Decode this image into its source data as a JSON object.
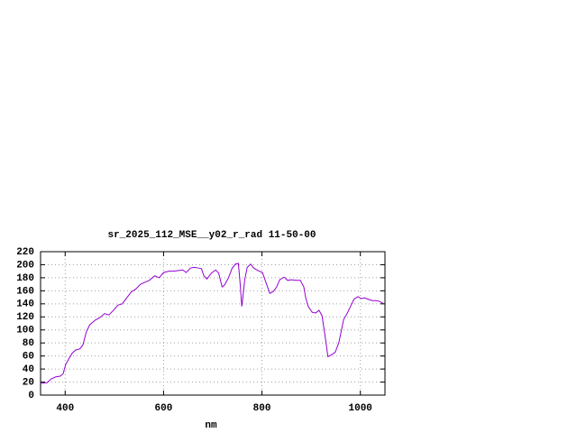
{
  "chart_data": {
    "type": "line",
    "title": "sr_2025_112_MSE__y02_r_rad 11-50-00",
    "x_label": "nm",
    "x": [
      350,
      363,
      372,
      381,
      390,
      396,
      401,
      407,
      414,
      421,
      430,
      436,
      443,
      450,
      461,
      471,
      480,
      489,
      498,
      507,
      516,
      525,
      534,
      544,
      553,
      562,
      571,
      582,
      591,
      600,
      611,
      620,
      629,
      639,
      646,
      655,
      662,
      670,
      677,
      682,
      688,
      697,
      706,
      712,
      719,
      724,
      732,
      739,
      746,
      752,
      755,
      759,
      761,
      765,
      770,
      777,
      783,
      792,
      801,
      808,
      816,
      823,
      830,
      836,
      845,
      852,
      860,
      869,
      878,
      885,
      889,
      894,
      902,
      909,
      916,
      922,
      929,
      934,
      942,
      949,
      956,
      960,
      966,
      973,
      980,
      987,
      995,
      1002,
      1009,
      1016,
      1024,
      1031,
      1038,
      1046
    ],
    "values": [
      18,
      19,
      25,
      28,
      29,
      33,
      47,
      55,
      64,
      69,
      71,
      77,
      97,
      108,
      115,
      119,
      125,
      123,
      130,
      138,
      140,
      149,
      158,
      163,
      170,
      173,
      176,
      183,
      180,
      188,
      190,
      190,
      191,
      192,
      188,
      195,
      196,
      195,
      194,
      183,
      178,
      187,
      192,
      187,
      166,
      169,
      180,
      194,
      201,
      202,
      177,
      136,
      149,
      177,
      196,
      201,
      195,
      191,
      188,
      173,
      156,
      159,
      166,
      177,
      181,
      176,
      177,
      176,
      176,
      166,
      149,
      136,
      127,
      126,
      130,
      122,
      87,
      59,
      62,
      66,
      80,
      94,
      116,
      125,
      136,
      147,
      151,
      148,
      149,
      147,
      145,
      145,
      144,
      141
    ],
    "color": "#9400d3",
    "xlim": [
      350,
      1050
    ],
    "xticks": [
      400,
      600,
      800,
      1000
    ],
    "ylim": [
      0,
      220
    ],
    "yticks": [
      0,
      20,
      40,
      60,
      80,
      100,
      120,
      140,
      160,
      180,
      200,
      220
    ],
    "grid": true
  }
}
